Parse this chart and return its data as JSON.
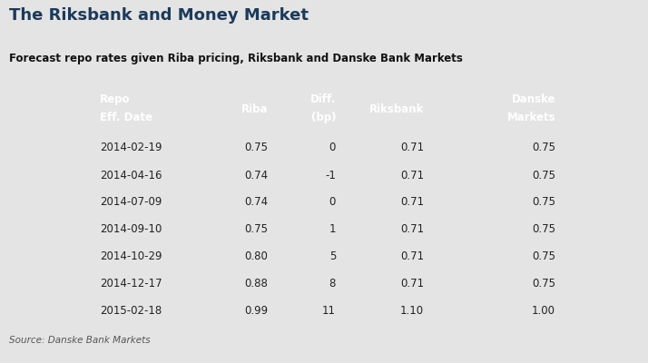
{
  "title": "The Riksbank and Money Market",
  "subtitle": "Forecast repo rates given Riba pricing, Riksbank and Danske Bank Markets",
  "source": "Source: Danske Bank Markets",
  "header_row1": [
    "Repo\nEff. Date",
    "Riba",
    "Diff.\n(bp)",
    "Riksbank",
    "Danske\nMarkets"
  ],
  "rows": [
    [
      "2014-02-19",
      "0.75",
      "0",
      "0.71",
      "0.75"
    ],
    [
      "2014-04-16",
      "0.74",
      "-1",
      "0.71",
      "0.75"
    ],
    [
      "2014-07-09",
      "0.74",
      "0",
      "0.71",
      "0.75"
    ],
    [
      "2014-09-10",
      "0.75",
      "1",
      "0.71",
      "0.75"
    ],
    [
      "2014-10-29",
      "0.80",
      "5",
      "0.71",
      "0.75"
    ],
    [
      "2014-12-17",
      "0.88",
      "8",
      "0.71",
      "0.75"
    ],
    [
      "2015-02-18",
      "0.99",
      "11",
      "1.10",
      "1.00"
    ]
  ],
  "header_bg_color": "#1b3a5c",
  "header_text_color": "#ffffff",
  "row_text_color": "#222222",
  "bg_color": "#e4e4e4",
  "table_bg_color": "#e4e4e4",
  "title_color": "#1b3a5c",
  "subtitle_color": "#111111",
  "source_color": "#555555",
  "divider_color": "#999999",
  "subtitle_bg_color": "#d8d8d8",
  "fig_width": 7.14,
  "fig_height": 4.0,
  "dpi": 100
}
